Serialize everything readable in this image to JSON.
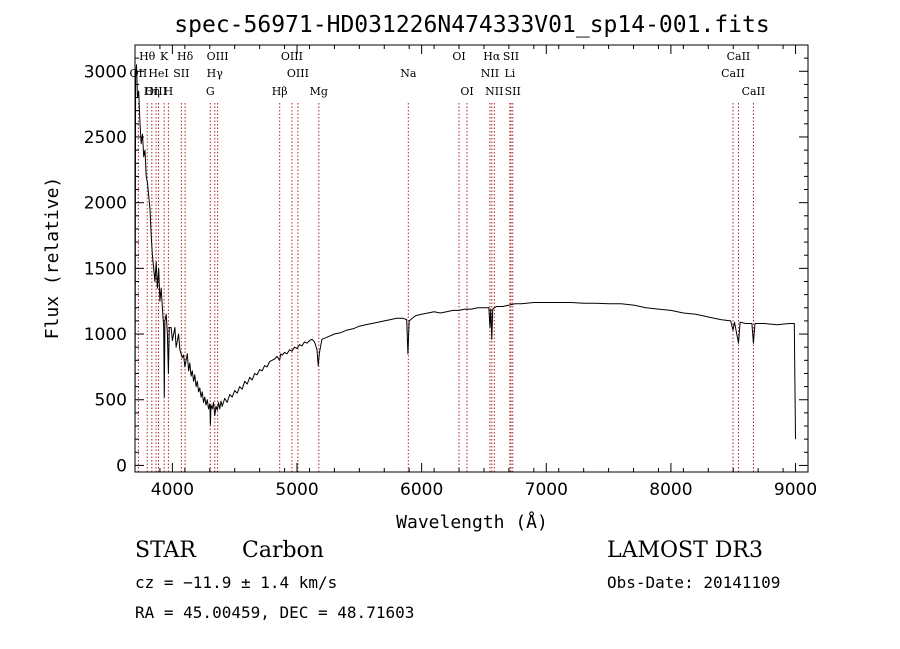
{
  "chart_data": {
    "type": "line",
    "title": "spec-56971-HD031226N474333V01_sp14-001.fits",
    "xlabel": "Wavelength (Å)",
    "ylabel": "Flux (relative)",
    "xlim": [
      3700,
      9100
    ],
    "ylim": [
      -50,
      3200
    ],
    "xticks": [
      4000,
      5000,
      6000,
      7000,
      8000,
      9000
    ],
    "yticks": [
      0,
      500,
      1000,
      1500,
      2000,
      2500,
      3000
    ],
    "grid": false,
    "line_color": "#000000",
    "marker_color": "#b22222",
    "spectral_lines": [
      {
        "label": "Hθ",
        "wavelength": 3798,
        "row": 0
      },
      {
        "label": "K",
        "wavelength": 3934,
        "row": 0
      },
      {
        "label": "Hδ",
        "wavelength": 4102,
        "row": 0
      },
      {
        "label": "OIII",
        "wavelength": 4363,
        "row": 0
      },
      {
        "label": "OIII",
        "wavelength": 4959,
        "row": 0
      },
      {
        "label": "OI",
        "wavelength": 6300,
        "row": 0
      },
      {
        "label": "Hα",
        "wavelength": 6563,
        "row": 0
      },
      {
        "label": "SII",
        "wavelength": 6717,
        "row": 0
      },
      {
        "label": "CaII",
        "wavelength": 8542,
        "row": 0
      },
      {
        "label": "OII",
        "wavelength": 3727,
        "row": 1
      },
      {
        "label": "HeI",
        "wavelength": 3889,
        "row": 1
      },
      {
        "label": "SII",
        "wavelength": 4072,
        "row": 1
      },
      {
        "label": "Hγ",
        "wavelength": 4340,
        "row": 1
      },
      {
        "label": "OIII",
        "wavelength": 5007,
        "row": 1
      },
      {
        "label": "Na",
        "wavelength": 5893,
        "row": 1
      },
      {
        "label": "NII",
        "wavelength": 6548,
        "row": 1
      },
      {
        "label": "Li",
        "wavelength": 6708,
        "row": 1
      },
      {
        "label": "CaII",
        "wavelength": 8498,
        "row": 1
      },
      {
        "label": "OIII",
        "wavelength": 3869,
        "row": 2
      },
      {
        "label": "Hη",
        "wavelength": 3835,
        "row": 2
      },
      {
        "label": "H",
        "wavelength": 3968,
        "row": 2
      },
      {
        "label": "G",
        "wavelength": 4304,
        "row": 2
      },
      {
        "label": "Hβ",
        "wavelength": 4861,
        "row": 2
      },
      {
        "label": "Mg",
        "wavelength": 5175,
        "row": 2
      },
      {
        "label": "OI",
        "wavelength": 6364,
        "row": 2
      },
      {
        "label": "NII",
        "wavelength": 6583,
        "row": 2
      },
      {
        "label": "SII",
        "wavelength": 6731,
        "row": 2
      },
      {
        "label": "CaII",
        "wavelength": 8662,
        "row": 2
      }
    ],
    "spectrum": [
      [
        3700,
        60
      ],
      [
        3705,
        2950
      ],
      [
        3712,
        3050
      ],
      [
        3720,
        2800
      ],
      [
        3730,
        2850
      ],
      [
        3740,
        2600
      ],
      [
        3750,
        2450
      ],
      [
        3760,
        2520
      ],
      [
        3770,
        2350
      ],
      [
        3780,
        2400
      ],
      [
        3790,
        2200
      ],
      [
        3800,
        2150
      ],
      [
        3810,
        2050
      ],
      [
        3820,
        1950
      ],
      [
        3830,
        1750
      ],
      [
        3840,
        1600
      ],
      [
        3850,
        1500
      ],
      [
        3860,
        1400
      ],
      [
        3870,
        1550
      ],
      [
        3880,
        1350
      ],
      [
        3890,
        1500
      ],
      [
        3900,
        1250
      ],
      [
        3910,
        1350
      ],
      [
        3920,
        1200
      ],
      [
        3930,
        1050
      ],
      [
        3935,
        520
      ],
      [
        3940,
        1100
      ],
      [
        3950,
        1150
      ],
      [
        3960,
        1000
      ],
      [
        3968,
        700
      ],
      [
        3975,
        1050
      ],
      [
        3990,
        1050
      ],
      [
        4000,
        950
      ],
      [
        4010,
        1000
      ],
      [
        4020,
        1050
      ],
      [
        4030,
        900
      ],
      [
        4040,
        950
      ],
      [
        4050,
        1000
      ],
      [
        4060,
        880
      ],
      [
        4070,
        850
      ],
      [
        4080,
        820
      ],
      [
        4090,
        840
      ],
      [
        4100,
        750
      ],
      [
        4110,
        800
      ],
      [
        4120,
        850
      ],
      [
        4130,
        720
      ],
      [
        4140,
        780
      ],
      [
        4150,
        680
      ],
      [
        4160,
        720
      ],
      [
        4170,
        640
      ],
      [
        4180,
        690
      ],
      [
        4190,
        600
      ],
      [
        4200,
        640
      ],
      [
        4210,
        560
      ],
      [
        4220,
        590
      ],
      [
        4230,
        520
      ],
      [
        4240,
        560
      ],
      [
        4250,
        480
      ],
      [
        4260,
        520
      ],
      [
        4270,
        460
      ],
      [
        4280,
        500
      ],
      [
        4290,
        430
      ],
      [
        4300,
        470
      ],
      [
        4305,
        310
      ],
      [
        4310,
        460
      ],
      [
        4320,
        430
      ],
      [
        4330,
        480
      ],
      [
        4340,
        380
      ],
      [
        4350,
        450
      ],
      [
        4360,
        420
      ],
      [
        4370,
        480
      ],
      [
        4380,
        430
      ],
      [
        4390,
        490
      ],
      [
        4400,
        450
      ],
      [
        4420,
        510
      ],
      [
        4440,
        480
      ],
      [
        4460,
        540
      ],
      [
        4480,
        520
      ],
      [
        4500,
        570
      ],
      [
        4520,
        550
      ],
      [
        4540,
        600
      ],
      [
        4560,
        580
      ],
      [
        4580,
        640
      ],
      [
        4600,
        620
      ],
      [
        4620,
        670
      ],
      [
        4640,
        650
      ],
      [
        4660,
        700
      ],
      [
        4680,
        690
      ],
      [
        4700,
        730
      ],
      [
        4720,
        720
      ],
      [
        4740,
        760
      ],
      [
        4760,
        750
      ],
      [
        4780,
        790
      ],
      [
        4800,
        800
      ],
      [
        4820,
        810
      ],
      [
        4840,
        830
      ],
      [
        4860,
        800
      ],
      [
        4870,
        850
      ],
      [
        4880,
        840
      ],
      [
        4900,
        860
      ],
      [
        4920,
        850
      ],
      [
        4940,
        880
      ],
      [
        4960,
        870
      ],
      [
        4980,
        900
      ],
      [
        5000,
        890
      ],
      [
        5020,
        920
      ],
      [
        5040,
        910
      ],
      [
        5060,
        940
      ],
      [
        5080,
        930
      ],
      [
        5100,
        950
      ],
      [
        5120,
        960
      ],
      [
        5140,
        940
      ],
      [
        5160,
        880
      ],
      [
        5170,
        760
      ],
      [
        5180,
        860
      ],
      [
        5200,
        960
      ],
      [
        5250,
        980
      ],
      [
        5300,
        1000
      ],
      [
        5350,
        1010
      ],
      [
        5400,
        1030
      ],
      [
        5450,
        1040
      ],
      [
        5500,
        1060
      ],
      [
        5550,
        1070
      ],
      [
        5600,
        1080
      ],
      [
        5650,
        1090
      ],
      [
        5700,
        1100
      ],
      [
        5750,
        1110
      ],
      [
        5800,
        1120
      ],
      [
        5850,
        1120
      ],
      [
        5880,
        1110
      ],
      [
        5890,
        850
      ],
      [
        5900,
        1100
      ],
      [
        5950,
        1140
      ],
      [
        6000,
        1150
      ],
      [
        6050,
        1160
      ],
      [
        6100,
        1170
      ],
      [
        6150,
        1160
      ],
      [
        6200,
        1170
      ],
      [
        6250,
        1180
      ],
      [
        6300,
        1180
      ],
      [
        6350,
        1190
      ],
      [
        6400,
        1190
      ],
      [
        6450,
        1200
      ],
      [
        6500,
        1200
      ],
      [
        6540,
        1200
      ],
      [
        6548,
        1050
      ],
      [
        6555,
        1190
      ],
      [
        6563,
        960
      ],
      [
        6570,
        1190
      ],
      [
        6600,
        1210
      ],
      [
        6650,
        1210
      ],
      [
        6700,
        1220
      ],
      [
        6750,
        1230
      ],
      [
        6800,
        1230
      ],
      [
        6900,
        1240
      ],
      [
        7000,
        1240
      ],
      [
        7100,
        1240
      ],
      [
        7200,
        1240
      ],
      [
        7300,
        1235
      ],
      [
        7400,
        1235
      ],
      [
        7500,
        1230
      ],
      [
        7600,
        1230
      ],
      [
        7700,
        1220
      ],
      [
        7800,
        1200
      ],
      [
        7900,
        1190
      ],
      [
        8000,
        1180
      ],
      [
        8100,
        1160
      ],
      [
        8200,
        1150
      ],
      [
        8300,
        1130
      ],
      [
        8400,
        1110
      ],
      [
        8480,
        1100
      ],
      [
        8498,
        1030
      ],
      [
        8510,
        1090
      ],
      [
        8542,
        930
      ],
      [
        8555,
        1090
      ],
      [
        8600,
        1080
      ],
      [
        8650,
        1080
      ],
      [
        8662,
        930
      ],
      [
        8675,
        1080
      ],
      [
        8750,
        1080
      ],
      [
        8850,
        1070
      ],
      [
        8950,
        1080
      ],
      [
        8990,
        1080
      ],
      [
        9000,
        200
      ]
    ]
  },
  "info": {
    "object_class": "STAR",
    "subclass": "Carbon",
    "survey": "LAMOST DR3",
    "cz": "cz = −11.9 ± 1.4 km/s",
    "obs_date": "Obs-Date: 20141109",
    "coords": "RA =  45.00459, DEC =  48.71603"
  }
}
